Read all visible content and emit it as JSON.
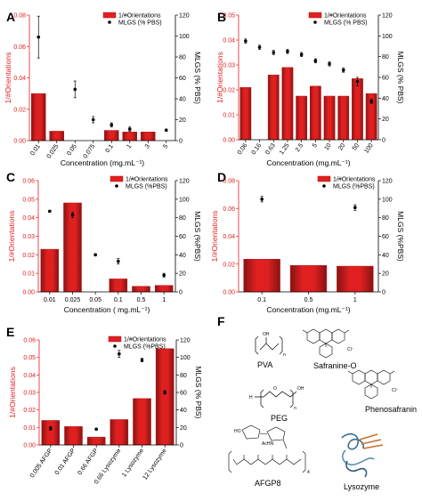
{
  "colors": {
    "bar": "#e02020",
    "bar_dark": "#8a1212",
    "bar_edge": "#b01818",
    "left_axis": "#e02020",
    "point": "#000000"
  },
  "chart_data": [
    {
      "id": "A",
      "type": "bar",
      "categories": [
        "0.01",
        "0.025",
        "0.05",
        "0.075",
        "0.1",
        "1",
        "3",
        "5"
      ],
      "series": [
        {
          "name": "1/#Orientations",
          "axis": "left",
          "values": [
            0.03,
            0.006,
            null,
            null,
            0.0065,
            0.0055,
            0.0055,
            null
          ]
        },
        {
          "name": "MLGS (% PBS)",
          "axis": "right",
          "type": "scatter",
          "values": [
            99,
            null,
            49,
            20,
            15,
            11,
            null,
            10
          ],
          "errors": [
            20,
            null,
            8,
            3,
            2,
            2,
            null,
            1
          ]
        }
      ],
      "xlabel": "Concentration (mg.mL⁻¹)",
      "ylabel_left": "1/#Orientations",
      "ylabel_right": "MLGS (% PBS)",
      "ylim_left": [
        0,
        0.08
      ],
      "yticks_left": [
        "0.00",
        "0.02",
        "0.04",
        "0.06",
        "0.08"
      ],
      "ylim_right": [
        0,
        120
      ],
      "yticks_right": [
        "0",
        "20",
        "40",
        "60",
        "80",
        "100",
        "120"
      ],
      "legend": "top-right"
    },
    {
      "id": "B",
      "type": "bar",
      "categories": [
        "0.06",
        "0.16",
        "0.63",
        "1.25",
        "2.5",
        "5",
        "10",
        "20",
        "50",
        "100"
      ],
      "series": [
        {
          "name": "1/#Orientations",
          "axis": "left",
          "values": [
            0.021,
            null,
            0.026,
            0.029,
            0.0175,
            0.0215,
            0.0175,
            0.0175,
            0.0245,
            0.0185
          ]
        },
        {
          "name": "MLGS (% PBS)",
          "axis": "right",
          "type": "scatter",
          "values": [
            95,
            89,
            84,
            85,
            82,
            76,
            73,
            67,
            56,
            37
          ],
          "errors": [
            2,
            2,
            2,
            2,
            2,
            2,
            2,
            2,
            4,
            2
          ]
        }
      ],
      "xlabel": "Concentration (mg.mL⁻¹)",
      "ylabel_left": "1/#Orientations",
      "ylabel_right": "MLGS (% PBS)",
      "ylim_left": [
        0,
        0.05
      ],
      "yticks_left": [
        "0.00",
        "0.01",
        "0.02",
        "0.03",
        "0.04",
        "0.05"
      ],
      "ylim_right": [
        0,
        120
      ],
      "yticks_right": [
        "0",
        "20",
        "40",
        "60",
        "80",
        "100",
        "120"
      ],
      "legend": "top-right"
    },
    {
      "id": "C",
      "type": "bar",
      "categories": [
        "0.01",
        "0.025",
        "0.05",
        "0.1",
        "0.5",
        "1"
      ],
      "series": [
        {
          "name": "1/#Orientations",
          "axis": "left",
          "values": [
            0.023,
            0.048,
            null,
            0.007,
            0.003,
            0.0035
          ]
        },
        {
          "name": "MLGS (%PBS)",
          "axis": "right",
          "type": "scatter",
          "values": [
            87,
            83,
            40,
            33,
            null,
            18
          ],
          "errors": [
            1,
            3,
            1,
            3,
            null,
            2
          ]
        }
      ],
      "xlabel": "Concentration ( mg.mL⁻¹)",
      "ylabel_left": "1/#Orientations",
      "ylabel_right": "MLGS (%PBS)",
      "ylim_left": [
        0,
        0.06
      ],
      "yticks_left": [
        "0.00",
        "0.01",
        "0.02",
        "0.03",
        "0.04",
        "0.05",
        "0.06"
      ],
      "ylim_right": [
        0,
        120
      ],
      "yticks_right": [
        "0",
        "20",
        "40",
        "60",
        "80",
        "100",
        "120"
      ],
      "legend": "top-right"
    },
    {
      "id": "D",
      "type": "bar",
      "categories": [
        "0.1",
        "0.5",
        "1"
      ],
      "series": [
        {
          "name": "1/#Orientations",
          "axis": "left",
          "values": [
            0.0235,
            0.019,
            0.0185
          ]
        },
        {
          "name": "MLGS (%PBS)",
          "axis": "right",
          "type": "scatter",
          "values": [
            100,
            null,
            91
          ],
          "errors": [
            3,
            null,
            3
          ]
        }
      ],
      "xlabel": "Concentration (mg.mL⁻¹)",
      "ylabel_left": "1/#Orientations",
      "ylabel_right": "MLGS (%PBS)",
      "ylim_left": [
        0,
        0.08
      ],
      "yticks_left": [
        "0.00",
        "0.02",
        "0.04",
        "0.06",
        "0.08"
      ],
      "ylim_right": [
        0,
        120
      ],
      "yticks_right": [
        "0",
        "20",
        "40",
        "60",
        "80",
        "100",
        "120"
      ],
      "legend": "top-right"
    },
    {
      "id": "E",
      "type": "bar",
      "categories": [
        "0.005 AFGP",
        "0.01 AFGP",
        "0.66 AFGP",
        "0.66 Lysozyme",
        "1 Lysozyme",
        "12 Lysozyme"
      ],
      "series": [
        {
          "name": "1/#Orientations",
          "axis": "left",
          "values": [
            0.014,
            0.0105,
            0.0045,
            0.0145,
            0.0265,
            0.055
          ]
        },
        {
          "name": "MLGS (%PBS)",
          "axis": "right",
          "type": "scatter",
          "values": [
            19,
            null,
            18,
            104,
            97,
            60
          ],
          "errors": [
            2,
            null,
            1,
            4,
            2,
            2
          ]
        }
      ],
      "xlabel": "",
      "ylabel_left": "1/#Orientations",
      "ylabel_right": "MLGS (% PBS)",
      "ylim_left": [
        0,
        0.06
      ],
      "yticks_left": [
        "0.00",
        "0.01",
        "0.02",
        "0.03",
        "0.04",
        "0.05",
        "0.06"
      ],
      "ylim_right": [
        0,
        120
      ],
      "yticks_right": [
        "0",
        "20",
        "40",
        "60",
        "80",
        "100",
        "120"
      ],
      "legend": "top-right"
    }
  ],
  "panel_f": {
    "letter": "F",
    "labels": {
      "pva": "PVA",
      "safranine": "Safranine-O",
      "peg": "PEG",
      "phenosafranin": "Phenosafranin",
      "afgp8": "AFGP8",
      "lysozyme": "Lysozyme"
    },
    "atoms": {
      "oh": "OH",
      "o": "O",
      "h": "H",
      "n": "n",
      "cl": "Cl⁻",
      "ho": "HO",
      "achn": "AcHN",
      "four": "4"
    }
  }
}
